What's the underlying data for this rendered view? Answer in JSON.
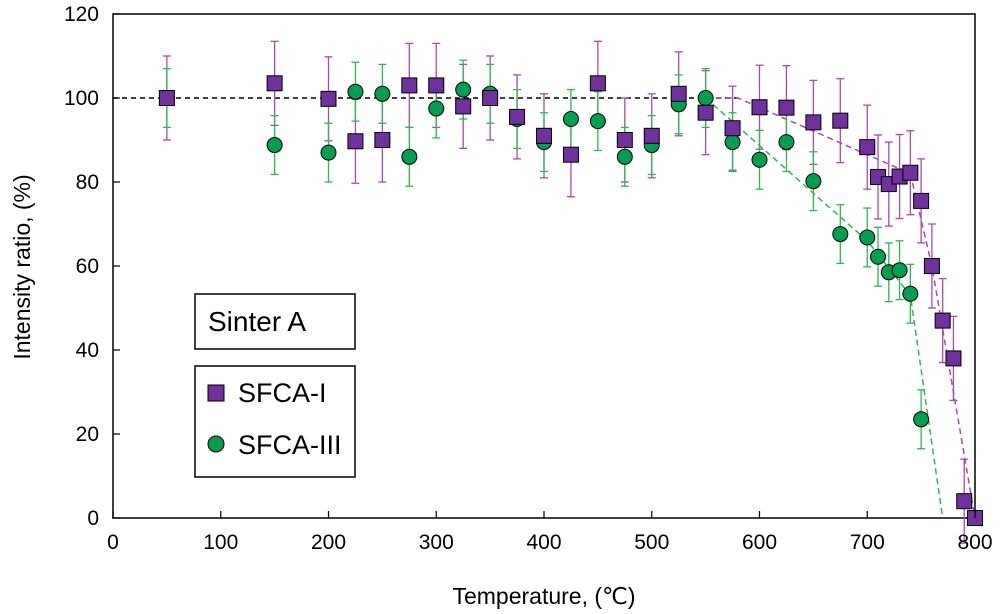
{
  "chart_data": {
    "type": "scatter",
    "title": "",
    "xlabel": "Temperature, (℃)",
    "ylabel": "Intensity ratio, (%)",
    "xlim": [
      0,
      800
    ],
    "ylim": [
      0,
      120
    ],
    "xticks": [
      0,
      100,
      200,
      300,
      400,
      500,
      600,
      700,
      800
    ],
    "yticks": [
      0,
      20,
      40,
      60,
      80,
      100,
      120
    ],
    "grid": false,
    "legend_position": "lower-left",
    "annotation": "Sinter A",
    "reference_line": {
      "y": 100,
      "x": [
        0,
        580
      ],
      "color": "#000000",
      "style": "dashed"
    },
    "series": [
      {
        "name": "SFCA-I",
        "marker": "square",
        "color": "#7030a0",
        "errorbar_color": "#a64ca6",
        "x": [
          50,
          150,
          200,
          225,
          250,
          275,
          300,
          325,
          350,
          375,
          400,
          425,
          450,
          475,
          500,
          525,
          550,
          575,
          600,
          625,
          650,
          675,
          700,
          710,
          720,
          730,
          740,
          750,
          760,
          770,
          780,
          790,
          800
        ],
        "y": [
          100,
          103.5,
          99.8,
          89.7,
          90,
          103,
          103,
          98,
          100,
          95.5,
          91,
          86.5,
          103.5,
          90,
          91,
          101,
          96.5,
          92.8,
          97.8,
          97.7,
          94.2,
          94.6,
          88.3,
          81.2,
          79.5,
          81.3,
          82.2,
          75.5,
          60,
          47,
          38,
          4,
          0
        ],
        "err": [
          10,
          10,
          10,
          10,
          10,
          10,
          10,
          10,
          10,
          10,
          10,
          10,
          10,
          10,
          10,
          10,
          10,
          10,
          10,
          10,
          10,
          10,
          10,
          10,
          10,
          10,
          10,
          10,
          10,
          10,
          10,
          10,
          0
        ],
        "trend": {
          "x": [
            550,
            580,
            740,
            760,
            800
          ],
          "y": [
            100,
            100,
            82,
            60,
            0
          ]
        }
      },
      {
        "name": "SFCA-III",
        "marker": "circle",
        "color": "#00a050",
        "errorbar_color": "#2db84e",
        "x": [
          50,
          150,
          200,
          225,
          250,
          275,
          300,
          325,
          350,
          375,
          400,
          425,
          450,
          475,
          500,
          525,
          550,
          575,
          600,
          625,
          650,
          675,
          700,
          710,
          720,
          730,
          740,
          750,
          800
        ],
        "y": [
          100,
          88.8,
          87,
          101.5,
          101,
          86,
          97.5,
          102,
          101,
          95,
          89.5,
          95,
          94.5,
          86,
          88.8,
          98.5,
          100,
          89.5,
          85.3,
          89.5,
          80.2,
          67.6,
          66.8,
          62.2,
          58.5,
          59,
          53.4,
          23.5,
          0
        ],
        "err": [
          7,
          7,
          7,
          7,
          7,
          7,
          7,
          7,
          7,
          7,
          7,
          7,
          7,
          7,
          7,
          7,
          7,
          7,
          7,
          7,
          7,
          7,
          7,
          7,
          7,
          7,
          7,
          7,
          0
        ],
        "trend": {
          "x": [
            550,
            700,
            740,
            770
          ],
          "y": [
            100,
            66,
            53,
            0
          ]
        }
      }
    ]
  }
}
